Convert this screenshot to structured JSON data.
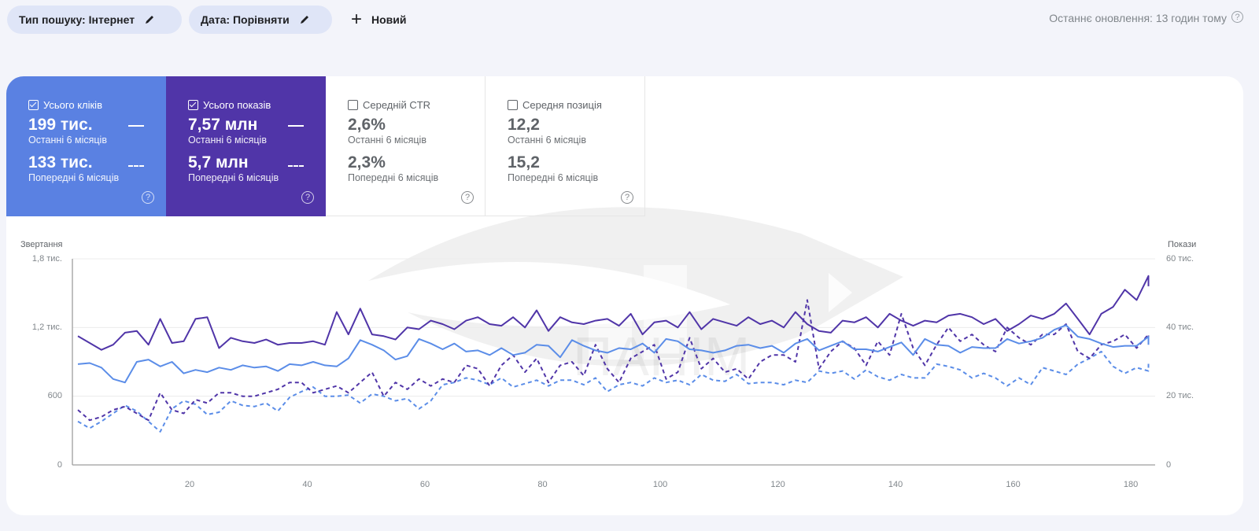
{
  "filters": {
    "search_type": "Тип пошуку: Інтернет",
    "date": "Дата: Порівняти",
    "new_label": "Новий"
  },
  "status": {
    "last_updated": "Останнє оновлення: 13 годин тому",
    "help_glyph": "?"
  },
  "metrics": [
    {
      "label": "Усього кліків",
      "checked": true,
      "current_value": "199 тис.",
      "current_period": "Останні 6 місяців",
      "previous_value": "133 тис.",
      "previous_period": "Попередні 6 місяців",
      "color": "#5a81e2"
    },
    {
      "label": "Усього показів",
      "checked": true,
      "current_value": "7,57 млн",
      "current_period": "Останні 6 місяців",
      "previous_value": "5,7 млн",
      "previous_period": "Попередні 6 місяців",
      "color": "#5035a8"
    },
    {
      "label": "Середній CTR",
      "checked": false,
      "current_value": "2,6%",
      "current_period": "Останні 6 місяців",
      "previous_value": "2,3%",
      "previous_period": "Попередні 6 місяців"
    },
    {
      "label": "Середня позиція",
      "checked": false,
      "current_value": "12,2",
      "current_period": "Останні 6 місяців",
      "previous_value": "15,2",
      "previous_period": "Попередні 6 місяців"
    }
  ],
  "chart_data": {
    "type": "line",
    "left_axis_title": "Звертання",
    "right_axis_title": "Покази",
    "left_ticks": [
      "0",
      "600",
      "1,2 тис.",
      "1,8 тис."
    ],
    "left_tick_values": [
      0,
      600,
      1200,
      1800
    ],
    "right_ticks": [
      "0",
      "20 тис.",
      "40 тис.",
      "60 тис."
    ],
    "right_tick_values": [
      0,
      20000,
      40000,
      60000
    ],
    "x_ticks": [
      "20",
      "40",
      "60",
      "80",
      "100",
      "120",
      "140",
      "160",
      "180"
    ],
    "x_tick_values": [
      20,
      40,
      60,
      80,
      100,
      120,
      140,
      160,
      180
    ],
    "xlim": [
      1,
      183
    ],
    "grid": true,
    "legend": "metric tiles above chart",
    "x_step": 2,
    "series": [
      {
        "name": "Усього кліків — Останні 6 місяців",
        "axis": "left",
        "style": "solid",
        "color": "#5b8de8",
        "values": [
          880,
          890,
          850,
          750,
          720,
          900,
          920,
          860,
          900,
          800,
          830,
          810,
          850,
          830,
          870,
          850,
          860,
          820,
          880,
          870,
          900,
          870,
          860,
          930,
          1090,
          1050,
          1000,
          920,
          950,
          1100,
          1060,
          1010,
          1060,
          990,
          1000,
          960,
          1020,
          960,
          980,
          1050,
          1040,
          940,
          1090,
          1040,
          1000,
          980,
          1020,
          1010,
          1060,
          980,
          1100,
          1080,
          1010,
          1000,
          980,
          1000,
          1040,
          1050,
          1020,
          1040,
          980,
          1060,
          1100,
          1000,
          1040,
          1080,
          1010,
          1010,
          990,
          1030,
          1070,
          960,
          1100,
          1050,
          1040,
          980,
          1030,
          1020,
          1020,
          1100,
          1060,
          1080,
          1110,
          1180,
          1220,
          1120,
          1100,
          1060,
          1030,
          1040,
          1040,
          1120,
          1050
        ]
      },
      {
        "name": "Усього показів — Останні 6 місяців",
        "axis": "right",
        "style": "solid",
        "color": "#5035a8",
        "values": [
          37.5,
          35.5,
          33.5,
          35,
          38.5,
          39,
          35,
          42.5,
          35.5,
          36,
          42.5,
          43,
          34,
          37,
          36,
          35.5,
          36.5,
          35,
          35.5,
          35.5,
          36,
          35,
          44.5,
          38,
          45.5,
          38,
          37.5,
          36.5,
          40,
          39.5,
          42,
          41,
          39.5,
          42,
          43,
          41,
          40.5,
          43,
          40,
          45,
          39,
          43,
          41.5,
          41,
          42,
          42.5,
          40.5,
          44,
          38,
          41.5,
          42,
          40,
          44.5,
          39.5,
          42.5,
          41.5,
          40.5,
          43,
          41,
          42,
          40,
          44.5,
          41,
          39,
          38.5,
          42,
          41.5,
          43,
          40,
          44,
          42,
          40.5,
          42,
          41.5,
          43.5,
          44,
          43,
          41,
          42.5,
          39,
          41,
          43.5,
          42.5,
          44,
          47,
          42.5,
          38,
          44,
          46,
          51,
          48,
          55,
          52
        ]
      },
      {
        "name": "Усього кліків — Попередні 6 місяців",
        "axis": "left",
        "style": "dashed",
        "color": "#5b8de8",
        "values": [
          380,
          320,
          380,
          450,
          520,
          470,
          380,
          290,
          490,
          560,
          530,
          440,
          460,
          560,
          520,
          510,
          540,
          470,
          590,
          640,
          680,
          600,
          600,
          610,
          540,
          620,
          600,
          560,
          580,
          490,
          560,
          700,
          720,
          760,
          740,
          700,
          760,
          680,
          710,
          740,
          690,
          740,
          740,
          700,
          760,
          640,
          700,
          720,
          690,
          760,
          720,
          740,
          700,
          790,
          740,
          730,
          790,
          710,
          720,
          720,
          700,
          740,
          720,
          820,
          800,
          820,
          750,
          830,
          770,
          740,
          790,
          760,
          760,
          880,
          860,
          830,
          760,
          800,
          760,
          690,
          760,
          700,
          850,
          820,
          790,
          880,
          930,
          990,
          860,
          800,
          850,
          820,
          910
        ]
      },
      {
        "name": "Усього показів — Попередні 6 місяців",
        "axis": "right",
        "style": "dashed",
        "color": "#5035a8",
        "values": [
          16,
          13,
          14,
          16,
          17,
          15,
          13,
          21,
          16,
          15,
          19,
          18,
          21,
          21,
          20,
          20,
          21,
          22,
          24,
          24,
          21,
          22,
          23,
          21,
          24,
          27,
          20,
          24,
          22,
          25,
          23,
          25,
          24,
          29,
          28,
          23,
          29,
          32,
          27,
          31,
          24,
          29,
          30,
          26,
          35,
          28,
          24,
          31,
          33,
          35,
          25,
          27,
          37,
          28,
          31,
          27,
          28,
          25,
          30,
          32,
          32,
          30,
          48,
          28,
          33,
          36,
          34,
          29,
          36,
          32,
          44,
          34,
          29,
          35,
          40,
          36,
          38,
          35,
          33,
          40,
          37,
          35,
          38,
          38,
          41,
          33,
          31,
          35,
          36,
          38,
          34,
          38,
          36
        ]
      }
    ]
  },
  "watermark": {
    "text": "ПАНІМ"
  }
}
